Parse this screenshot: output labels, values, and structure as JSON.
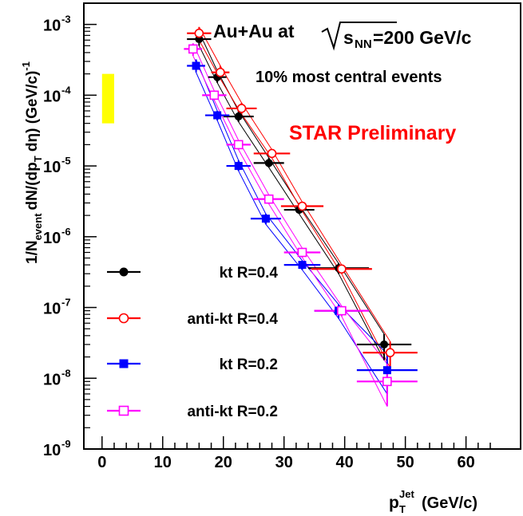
{
  "chart_data": {
    "type": "scatter",
    "title": "Au+Au at",
    "title_sqrt": "s",
    "title_sub": "NN",
    "title_value": "=200 GeV/c",
    "subtitle": "10% most central events",
    "annotation": "STAR Preliminary",
    "xlabel_main": "p",
    "xlabel_sub": "T",
    "xlabel_sup": "Jet",
    "xlabel_unit": "(GeV/c)",
    "ylabel_part1": "1/N",
    "ylabel_event": "event",
    "ylabel_part2": "dN/(dp",
    "ylabel_T": "T",
    "ylabel_part3": " dη) (GeV/c)",
    "ylabel_exp": "-1",
    "xlim": [
      -3,
      69
    ],
    "ylim_log10": [
      -9,
      -2.7
    ],
    "yscale": "log",
    "x_ticks": [
      "0",
      "10",
      "20",
      "30",
      "40",
      "50",
      "60"
    ],
    "y_tick_base": "10",
    "y_tick_exponents": [
      "-9",
      "-8",
      "-7",
      "-6",
      "-5",
      "-4",
      "-3"
    ],
    "grid": false,
    "legend_position": "bottom-left",
    "systematic_box": {
      "x": [
        0,
        2
      ],
      "y": [
        4e-05,
        0.0002
      ],
      "color": "#ffff00"
    },
    "series": [
      {
        "name": "kt R=0.4",
        "color": "#000000",
        "marker": "filled-circle",
        "x": [
          16,
          19,
          22.5,
          27.5,
          32.5,
          39,
          46.5
        ],
        "xerr": [
          2,
          1.5,
          2.5,
          2.5,
          2.5,
          5,
          4.5
        ],
        "y": [
          0.00062,
          0.00018,
          5e-05,
          1.1e-05,
          2.4e-06,
          3.6e-07,
          3e-08
        ],
        "ylow": [
          0.0005,
          0.00015,
          4.2e-05,
          9.5e-06,
          2.1e-06,
          3e-07,
          1.8e-08
        ],
        "yhigh": [
          0.00078,
          0.00022,
          6e-05,
          1.3e-05,
          2.8e-06,
          4.2e-07,
          4.2e-08
        ]
      },
      {
        "name": "anti-kt R=0.4",
        "color": "#ff0000",
        "marker": "open-circle",
        "x": [
          16,
          19.5,
          23,
          28,
          33,
          39.5,
          47.5
        ],
        "xerr": [
          2,
          1.5,
          2.5,
          3,
          3.5,
          5,
          4.5
        ],
        "y": [
          0.00075,
          0.00021,
          6.5e-05,
          1.5e-05,
          2.7e-06,
          3.5e-07,
          2.3e-08
        ],
        "ylow": [
          0.0006,
          0.00017,
          5.4e-05,
          1.3e-05,
          2.3e-06,
          3e-07,
          1.4e-08
        ],
        "yhigh": [
          0.00092,
          0.00026,
          7.8e-05,
          1.7e-05,
          3.1e-06,
          4e-07,
          3.3e-08
        ]
      },
      {
        "name": "kt R=0.2",
        "color": "#0000ff",
        "marker": "filled-square",
        "x": [
          15.5,
          19,
          22.5,
          27,
          33,
          39,
          47
        ],
        "xerr": [
          1.5,
          2,
          2,
          2.5,
          3,
          4,
          5
        ],
        "y": [
          0.00026,
          5.2e-05,
          1e-05,
          1.8e-06,
          4e-07,
          9e-08,
          1.3e-08
        ],
        "ylow": [
          0.00021,
          4.4e-05,
          8.5e-06,
          1.5e-06,
          3.4e-07,
          7e-08,
          6e-09
        ],
        "yhigh": [
          0.00032,
          6e-05,
          1.2e-05,
          2.1e-06,
          4.6e-07,
          1.1e-07,
          2.2e-08
        ]
      },
      {
        "name": "anti-kt R=0.2",
        "color": "#ff00ff",
        "marker": "open-square",
        "x": [
          15,
          18.5,
          22.5,
          27.5,
          33,
          39.5,
          47
        ],
        "xerr": [
          1.5,
          2,
          2,
          2.5,
          3,
          4.5,
          5
        ],
        "y": [
          0.00045,
          0.0001,
          2e-05,
          3.4e-06,
          6e-07,
          9e-08,
          9e-09
        ],
        "ylow": [
          0.00036,
          8.5e-05,
          1.7e-05,
          2.9e-06,
          5.1e-07,
          7.5e-08,
          4e-09
        ],
        "yhigh": [
          0.00054,
          0.000115,
          2.3e-05,
          3.9e-06,
          6.9e-07,
          1.05e-07,
          1.6e-08
        ]
      }
    ]
  }
}
